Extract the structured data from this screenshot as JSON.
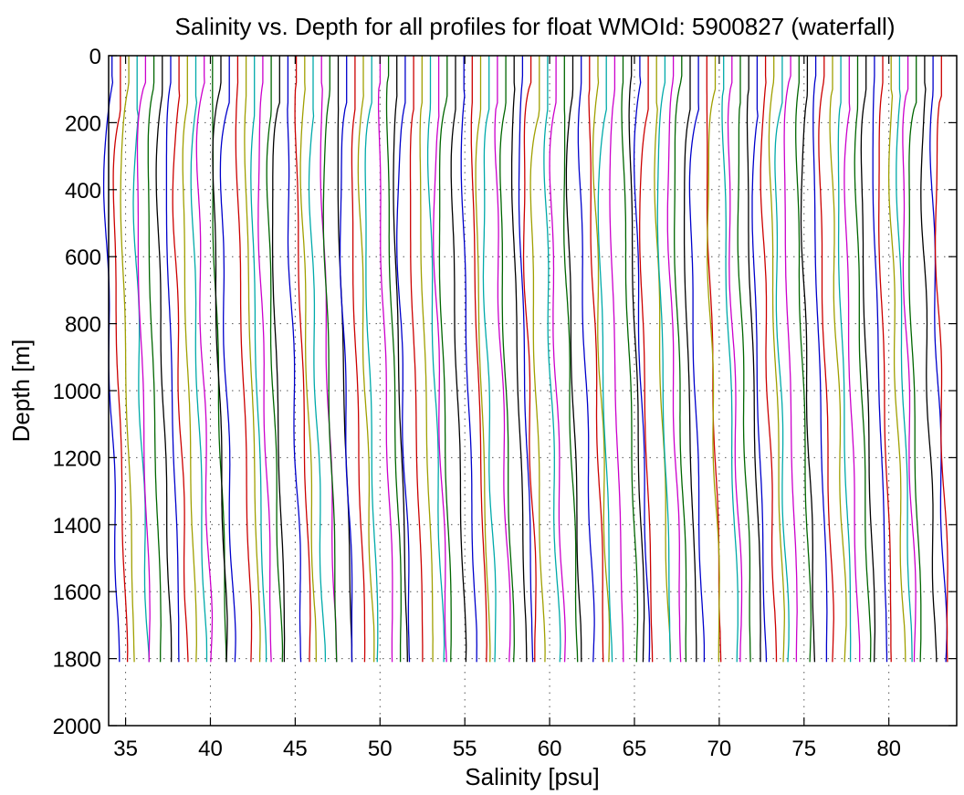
{
  "chart_data": {
    "type": "line",
    "title": "Salinity vs. Depth for all profiles for float WMOId: 5900827 (waterfall)",
    "xlabel": "Salinity [psu]",
    "ylabel": "Depth [m]",
    "xlim": [
      34,
      84
    ],
    "ylim": [
      0,
      2000
    ],
    "y_reversed": true,
    "grid": true,
    "grid_style": "dotted",
    "xticks": [
      35,
      40,
      45,
      50,
      55,
      60,
      65,
      70,
      75,
      80
    ],
    "xtick_labels": [
      "35",
      "40",
      "45",
      "50",
      "55",
      "60",
      "65",
      "70",
      "75",
      "80"
    ],
    "yticks": [
      0,
      200,
      400,
      600,
      800,
      1000,
      1200,
      1400,
      1600,
      1800,
      2000
    ],
    "ytick_labels": [
      "0",
      "200",
      "400",
      "600",
      "800",
      "1000",
      "1200",
      "1400",
      "1600",
      "1800",
      "2000"
    ],
    "profile_count": 100,
    "max_depth": 1810,
    "first_profile_surface_salinity": 34.2,
    "last_profile_surface_salinity": 83.1,
    "deep_offset": 1.0,
    "series_colors": [
      "#0000cc",
      "#cc0000",
      "#a0a000",
      "#00aaaa",
      "#cc00cc",
      "#006600",
      "#000000"
    ]
  }
}
